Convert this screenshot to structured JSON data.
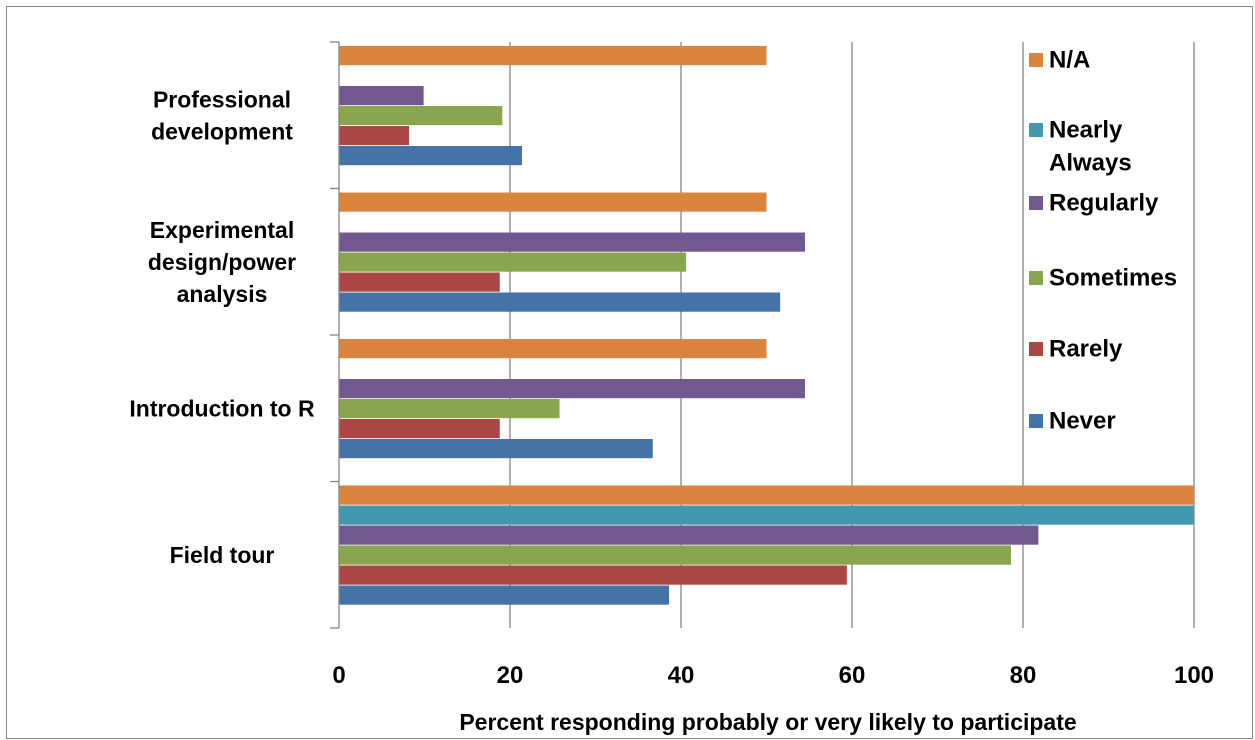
{
  "chart_data": {
    "type": "bar",
    "orientation": "horizontal",
    "categories": [
      "Professional development",
      "Experimental design/power analysis",
      "Introduction to R",
      "Field tour"
    ],
    "category_lines": [
      [
        "Professional",
        "development"
      ],
      [
        "Experimental",
        "design/power",
        "analysis"
      ],
      [
        "Introduction to R"
      ],
      [
        "Field tour"
      ]
    ],
    "series": [
      {
        "name": "Never",
        "color": "#4572A7",
        "values": [
          21.4,
          51.6,
          36.7,
          38.6
        ]
      },
      {
        "name": "Rarely",
        "color": "#AA4643",
        "values": [
          8.2,
          18.8,
          18.8,
          59.4
        ]
      },
      {
        "name": "Sometimes",
        "color": "#89A54E",
        "values": [
          19.1,
          40.6,
          25.8,
          78.6
        ]
      },
      {
        "name": "Regularly",
        "color": "#71588F",
        "values": [
          9.9,
          54.5,
          54.5,
          81.8
        ]
      },
      {
        "name": "Nearly Always",
        "color": "#4198AF",
        "values": [
          null,
          null,
          null,
          100
        ]
      },
      {
        "name": "N/A",
        "color": "#DB843D",
        "values": [
          50,
          50,
          50,
          100
        ]
      }
    ],
    "legend_lines": {
      "N/A": [
        "N/A"
      ],
      "Nearly Always": [
        "Nearly",
        "Always"
      ],
      "Regularly": [
        "Regularly"
      ],
      "Sometimes": [
        "Sometimes"
      ],
      "Rarely": [
        "Rarely"
      ],
      "Never": [
        "Never"
      ]
    },
    "legend_order": [
      "N/A",
      "Nearly Always",
      "Regularly",
      "Sometimes",
      "Rarely",
      "Never"
    ],
    "legend_position": "right",
    "xlabel": "Percent responding probably or very likely to participate",
    "xlim": [
      0,
      100
    ],
    "xticks": [
      "0",
      "20",
      "40",
      "60",
      "80",
      "100"
    ],
    "grid": true
  }
}
